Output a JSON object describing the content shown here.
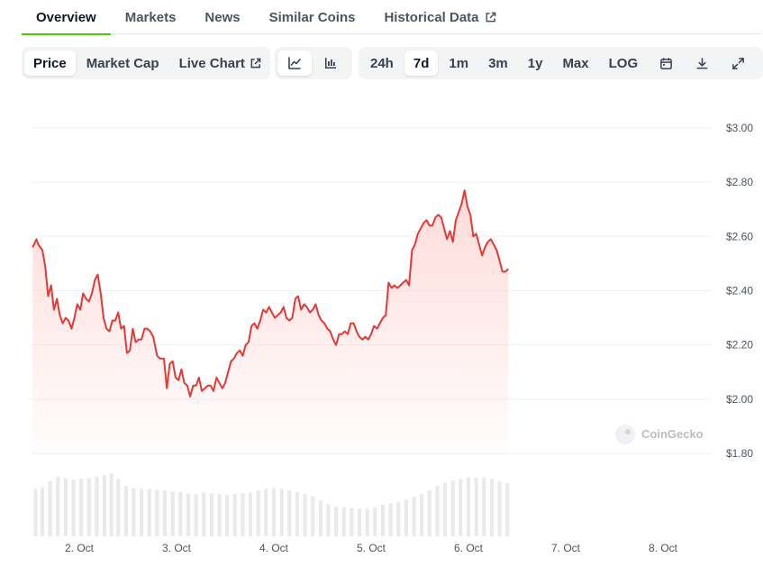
{
  "tabs": [
    {
      "label": "Overview",
      "active": true
    },
    {
      "label": "Markets"
    },
    {
      "label": "News"
    },
    {
      "label": "Similar Coins"
    },
    {
      "label": "Historical Data",
      "external": true
    }
  ],
  "toolbar": {
    "metrics": [
      {
        "label": "Price",
        "active": true
      },
      {
        "label": "Market Cap"
      },
      {
        "label": "Live Chart",
        "external": true
      }
    ],
    "chart_types": [
      {
        "icon": "line-chart-icon",
        "active": true
      },
      {
        "icon": "candlestick-chart-icon"
      }
    ],
    "ranges": [
      {
        "label": "24h"
      },
      {
        "label": "7d",
        "active": true
      },
      {
        "label": "1m"
      },
      {
        "label": "3m"
      },
      {
        "label": "1y"
      },
      {
        "label": "Max"
      },
      {
        "label": "LOG"
      }
    ],
    "actions": [
      "calendar-icon",
      "download-icon",
      "expand-icon"
    ]
  },
  "colors": {
    "line": "#e53935",
    "fill": "#fdd5d3",
    "volume": "#e9eaec",
    "grid": "#eef0f2",
    "active_tab": "#4bcc00"
  },
  "watermark": "CoinGecko",
  "chart_data": {
    "type": "area",
    "title": "",
    "xlabel": "",
    "ylabel": "",
    "ylim": [
      1.8,
      3.0
    ],
    "yticks": [
      3.0,
      2.8,
      2.6,
      2.4,
      2.2,
      2.0,
      1.8
    ],
    "ytick_labels": [
      "$3.00",
      "$2.80",
      "$2.60",
      "$2.40",
      "$2.20",
      "$2.00",
      "$1.80"
    ],
    "xlim": [
      1.5,
      8.5
    ],
    "xticks": [
      2,
      3,
      4,
      5,
      6,
      7,
      8
    ],
    "xtick_labels": [
      "2. Oct",
      "3. Oct",
      "4. Oct",
      "5. Oct",
      "6. Oct",
      "7. Oct",
      "8. Oct"
    ],
    "grid": true,
    "series": [
      {
        "values": [
          [
            1.52,
            2.56
          ],
          [
            1.56,
            2.59
          ],
          [
            1.58,
            2.57
          ],
          [
            1.62,
            2.55
          ],
          [
            1.65,
            2.49
          ],
          [
            1.68,
            2.38
          ],
          [
            1.71,
            2.42
          ],
          [
            1.74,
            2.33
          ],
          [
            1.77,
            2.37
          ],
          [
            1.8,
            2.31
          ],
          [
            1.83,
            2.28
          ],
          [
            1.86,
            2.3
          ],
          [
            1.89,
            2.29
          ],
          [
            1.92,
            2.26
          ],
          [
            1.95,
            2.3
          ],
          [
            1.98,
            2.35
          ],
          [
            2.01,
            2.33
          ],
          [
            2.04,
            2.39
          ],
          [
            2.07,
            2.37
          ],
          [
            2.1,
            2.36
          ],
          [
            2.13,
            2.39
          ],
          [
            2.16,
            2.44
          ],
          [
            2.19,
            2.46
          ],
          [
            2.22,
            2.39
          ],
          [
            2.25,
            2.3
          ],
          [
            2.28,
            2.26
          ],
          [
            2.31,
            2.25
          ],
          [
            2.34,
            2.29
          ],
          [
            2.37,
            2.29
          ],
          [
            2.4,
            2.32
          ],
          [
            2.43,
            2.26
          ],
          [
            2.46,
            2.27
          ],
          [
            2.49,
            2.17
          ],
          [
            2.52,
            2.18
          ],
          [
            2.55,
            2.26
          ],
          [
            2.58,
            2.21
          ],
          [
            2.61,
            2.22
          ],
          [
            2.64,
            2.22
          ],
          [
            2.67,
            2.26
          ],
          [
            2.7,
            2.26
          ],
          [
            2.73,
            2.25
          ],
          [
            2.76,
            2.23
          ],
          [
            2.8,
            2.16
          ],
          [
            2.83,
            2.15
          ],
          [
            2.87,
            2.15
          ],
          [
            2.9,
            2.04
          ],
          [
            2.93,
            2.13
          ],
          [
            2.96,
            2.14
          ],
          [
            2.99,
            2.08
          ],
          [
            3.02,
            2.07
          ],
          [
            3.05,
            2.11
          ],
          [
            3.08,
            2.06
          ],
          [
            3.11,
            2.05
          ],
          [
            3.14,
            2.01
          ],
          [
            3.17,
            2.05
          ],
          [
            3.2,
            2.05
          ],
          [
            3.23,
            2.08
          ],
          [
            3.26,
            2.03
          ],
          [
            3.29,
            2.04
          ],
          [
            3.32,
            2.05
          ],
          [
            3.35,
            2.05
          ],
          [
            3.38,
            2.03
          ],
          [
            3.41,
            2.08
          ],
          [
            3.44,
            2.06
          ],
          [
            3.47,
            2.04
          ],
          [
            3.5,
            2.06
          ],
          [
            3.53,
            2.1
          ],
          [
            3.56,
            2.14
          ],
          [
            3.59,
            2.15
          ],
          [
            3.62,
            2.17
          ],
          [
            3.65,
            2.18
          ],
          [
            3.68,
            2.16
          ],
          [
            3.71,
            2.2
          ],
          [
            3.74,
            2.21
          ],
          [
            3.77,
            2.27
          ],
          [
            3.8,
            2.28
          ],
          [
            3.83,
            2.26
          ],
          [
            3.86,
            2.29
          ],
          [
            3.89,
            2.33
          ],
          [
            3.92,
            2.32
          ],
          [
            3.95,
            2.34
          ],
          [
            3.98,
            2.32
          ],
          [
            4.01,
            2.3
          ],
          [
            4.04,
            2.31
          ],
          [
            4.07,
            2.32
          ],
          [
            4.1,
            2.34
          ],
          [
            4.13,
            2.3
          ],
          [
            4.16,
            2.29
          ],
          [
            4.19,
            2.3
          ],
          [
            4.22,
            2.37
          ],
          [
            4.25,
            2.38
          ],
          [
            4.28,
            2.33
          ],
          [
            4.31,
            2.35
          ],
          [
            4.34,
            2.34
          ],
          [
            4.37,
            2.32
          ],
          [
            4.4,
            2.33
          ],
          [
            4.43,
            2.35
          ],
          [
            4.46,
            2.31
          ],
          [
            4.49,
            2.29
          ],
          [
            4.52,
            2.28
          ],
          [
            4.55,
            2.26
          ],
          [
            4.58,
            2.25
          ],
          [
            4.61,
            2.22
          ],
          [
            4.64,
            2.2
          ],
          [
            4.67,
            2.24
          ],
          [
            4.7,
            2.24
          ],
          [
            4.73,
            2.25
          ],
          [
            4.76,
            2.24
          ],
          [
            4.79,
            2.28
          ],
          [
            4.82,
            2.28
          ],
          [
            4.85,
            2.25
          ],
          [
            4.88,
            2.23
          ],
          [
            4.91,
            2.22
          ],
          [
            4.94,
            2.23
          ],
          [
            4.97,
            2.22
          ],
          [
            5.0,
            2.24
          ],
          [
            5.03,
            2.27
          ],
          [
            5.06,
            2.26
          ],
          [
            5.09,
            2.28
          ],
          [
            5.12,
            2.3
          ],
          [
            5.15,
            2.31
          ],
          [
            5.18,
            2.43
          ],
          [
            5.21,
            2.41
          ],
          [
            5.24,
            2.42
          ],
          [
            5.27,
            2.41
          ],
          [
            5.3,
            2.42
          ],
          [
            5.33,
            2.43
          ],
          [
            5.36,
            2.44
          ],
          [
            5.39,
            2.42
          ],
          [
            5.42,
            2.55
          ],
          [
            5.45,
            2.57
          ],
          [
            5.48,
            2.61
          ],
          [
            5.51,
            2.63
          ],
          [
            5.54,
            2.65
          ],
          [
            5.57,
            2.66
          ],
          [
            5.6,
            2.64
          ],
          [
            5.63,
            2.64
          ],
          [
            5.66,
            2.67
          ],
          [
            5.69,
            2.68
          ],
          [
            5.72,
            2.67
          ],
          [
            5.75,
            2.63
          ],
          [
            5.78,
            2.59
          ],
          [
            5.81,
            2.62
          ],
          [
            5.84,
            2.58
          ],
          [
            5.87,
            2.66
          ],
          [
            5.9,
            2.69
          ],
          [
            5.93,
            2.72
          ],
          [
            5.96,
            2.77
          ],
          [
            5.99,
            2.71
          ],
          [
            6.02,
            2.68
          ],
          [
            6.05,
            2.6
          ],
          [
            6.08,
            2.61
          ],
          [
            6.11,
            2.57
          ],
          [
            6.14,
            2.53
          ],
          [
            6.17,
            2.56
          ],
          [
            6.2,
            2.58
          ],
          [
            6.23,
            2.59
          ],
          [
            6.26,
            2.57
          ],
          [
            6.29,
            2.55
          ],
          [
            6.32,
            2.51
          ],
          [
            6.35,
            2.47
          ],
          [
            6.38,
            2.47
          ],
          [
            6.41,
            2.48
          ]
        ]
      }
    ],
    "volume": {
      "values": [
        [
          1.55,
          0.62
        ],
        [
          1.62,
          0.64
        ],
        [
          1.7,
          0.72
        ],
        [
          1.78,
          0.78
        ],
        [
          1.86,
          0.76
        ],
        [
          1.94,
          0.74
        ],
        [
          2.02,
          0.75
        ],
        [
          2.1,
          0.76
        ],
        [
          2.18,
          0.78
        ],
        [
          2.26,
          0.8
        ],
        [
          2.33,
          0.82
        ],
        [
          2.4,
          0.75
        ],
        [
          2.48,
          0.66
        ],
        [
          2.56,
          0.63
        ],
        [
          2.64,
          0.62
        ],
        [
          2.72,
          0.62
        ],
        [
          2.8,
          0.61
        ],
        [
          2.88,
          0.6
        ],
        [
          2.96,
          0.59
        ],
        [
          3.04,
          0.58
        ],
        [
          3.12,
          0.56
        ],
        [
          3.2,
          0.55
        ],
        [
          3.28,
          0.57
        ],
        [
          3.36,
          0.56
        ],
        [
          3.44,
          0.55
        ],
        [
          3.52,
          0.54
        ],
        [
          3.6,
          0.55
        ],
        [
          3.68,
          0.56
        ],
        [
          3.76,
          0.57
        ],
        [
          3.84,
          0.6
        ],
        [
          3.92,
          0.62
        ],
        [
          4.0,
          0.63
        ],
        [
          4.08,
          0.62
        ],
        [
          4.16,
          0.6
        ],
        [
          4.24,
          0.58
        ],
        [
          4.32,
          0.55
        ],
        [
          4.4,
          0.52
        ],
        [
          4.48,
          0.47
        ],
        [
          4.56,
          0.42
        ],
        [
          4.64,
          0.39
        ],
        [
          4.72,
          0.38
        ],
        [
          4.8,
          0.37
        ],
        [
          4.88,
          0.36
        ],
        [
          4.96,
          0.36
        ],
        [
          5.04,
          0.38
        ],
        [
          5.12,
          0.41
        ],
        [
          5.2,
          0.43
        ],
        [
          5.28,
          0.45
        ],
        [
          5.36,
          0.48
        ],
        [
          5.44,
          0.52
        ],
        [
          5.52,
          0.55
        ],
        [
          5.6,
          0.6
        ],
        [
          5.68,
          0.66
        ],
        [
          5.76,
          0.7
        ],
        [
          5.84,
          0.73
        ],
        [
          5.92,
          0.75
        ],
        [
          6.0,
          0.77
        ],
        [
          6.08,
          0.77
        ],
        [
          6.16,
          0.77
        ],
        [
          6.24,
          0.75
        ],
        [
          6.32,
          0.72
        ],
        [
          6.4,
          0.69
        ]
      ]
    }
  }
}
